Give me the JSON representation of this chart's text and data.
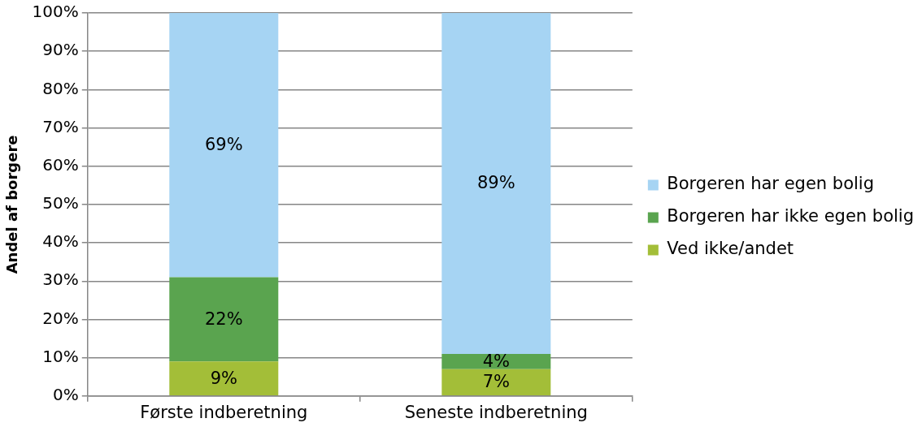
{
  "chart_data": {
    "type": "bar",
    "stacked": true,
    "ylabel": "Andel af borgere",
    "categories": [
      "Første indberetning",
      "Seneste indberetning"
    ],
    "series": [
      {
        "name": "Ved ikke/andet",
        "color": "#a3be38",
        "values": [
          9,
          7
        ],
        "value_labels": [
          "9%",
          "7%"
        ]
      },
      {
        "name": "Borgeren har ikke egen bolig",
        "color": "#5aa44f",
        "values": [
          22,
          4
        ],
        "value_labels": [
          "22%",
          "4%"
        ]
      },
      {
        "name": "Borgeren har egen bolig",
        "color": "#a6d4f3",
        "values": [
          69,
          89
        ],
        "value_labels": [
          "69%",
          "89%"
        ]
      }
    ],
    "ylim": [
      0,
      100
    ],
    "yticks": [
      {
        "value": 0,
        "label": "0%"
      },
      {
        "value": 10,
        "label": "10%"
      },
      {
        "value": 20,
        "label": "20%"
      },
      {
        "value": 30,
        "label": "30%"
      },
      {
        "value": 40,
        "label": "40%"
      },
      {
        "value": 50,
        "label": "50%"
      },
      {
        "value": 60,
        "label": "60%"
      },
      {
        "value": 70,
        "label": "70%"
      },
      {
        "value": 80,
        "label": "80%"
      },
      {
        "value": 90,
        "label": "90%"
      },
      {
        "value": 100,
        "label": "100%"
      }
    ],
    "grid": "y",
    "legend": "right"
  }
}
